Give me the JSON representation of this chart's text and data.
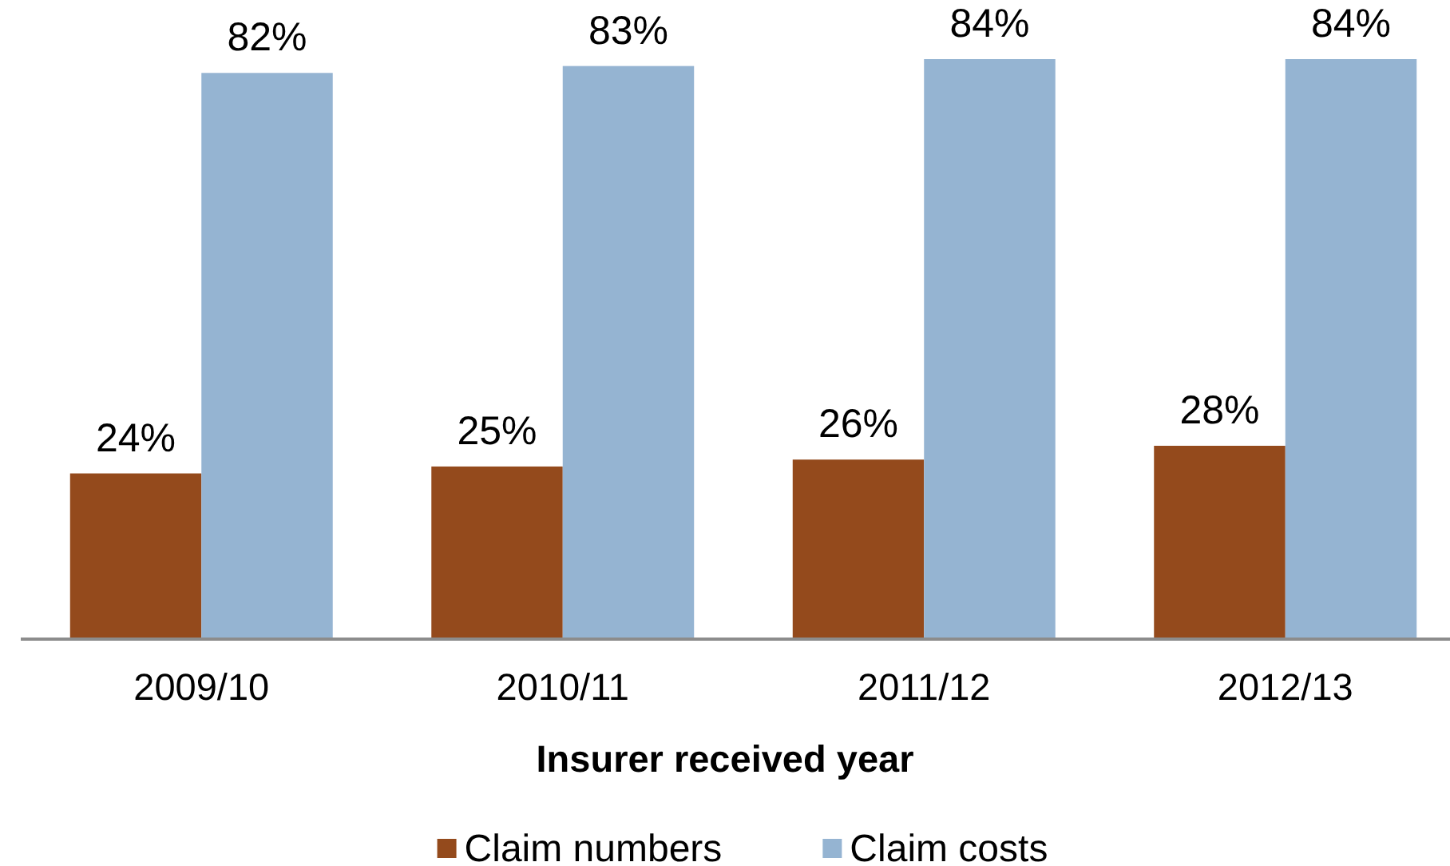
{
  "chart_data": {
    "type": "bar",
    "xlabel": "Insurer received year",
    "categories": [
      "2009/10",
      "2010/11",
      "2011/12",
      "2012/13"
    ],
    "series": [
      {
        "name": "Claim numbers",
        "color": "#944a1c",
        "values": [
          24,
          25,
          26,
          28
        ],
        "value_labels": [
          "24%",
          "25%",
          "26%",
          "28%"
        ]
      },
      {
        "name": "Claim costs",
        "color": "#95b4d2",
        "values": [
          82,
          83,
          84,
          84
        ],
        "value_labels": [
          "82%",
          "83%",
          "84%",
          "84%"
        ]
      }
    ],
    "legend": "bottom"
  }
}
